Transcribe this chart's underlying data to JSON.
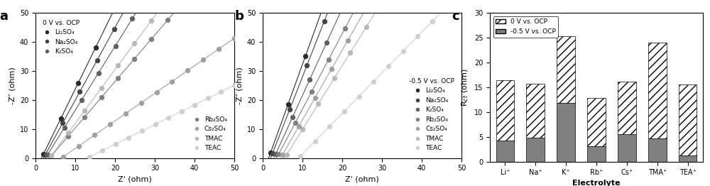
{
  "panel_a_label": "0 V vs. OCP",
  "panel_b_label": "-0.5 V vs. OCP",
  "electrolytes": [
    "Li₂SO₄",
    "Na₂SO₄",
    "K₂SO₄",
    "Rb₂SO₄",
    "Cs₂SO₄",
    "TMAC",
    "TEAC"
  ],
  "gray_shades": [
    "#2a2a2a",
    "#444444",
    "#606060",
    "#808080",
    "#a0a0a0",
    "#b8b8b8",
    "#d0d0d0"
  ],
  "slopes_a": [
    2.8,
    2.5,
    2.2,
    1.6,
    0.95,
    1.85,
    0.68
  ],
  "offsets_a": [
    1.5,
    2.0,
    2.5,
    3.5,
    6.5,
    3.5,
    13.0
  ],
  "slopes_b": [
    3.8,
    3.5,
    3.0,
    2.6,
    2.4,
    2.2,
    1.4
  ],
  "offsets_b": [
    1.5,
    2.0,
    2.8,
    3.5,
    4.5,
    5.5,
    9.0
  ],
  "bar_categories": [
    "Li⁺",
    "Na⁺",
    "K⁺",
    "Rb⁺",
    "Cs⁺",
    "TMA⁺",
    "TEA⁺"
  ],
  "rct_0V": [
    16.5,
    15.8,
    25.3,
    12.9,
    16.2,
    24.0,
    15.6
  ],
  "rct_m05V": [
    4.3,
    4.9,
    11.9,
    3.1,
    5.6,
    4.7,
    1.3
  ]
}
